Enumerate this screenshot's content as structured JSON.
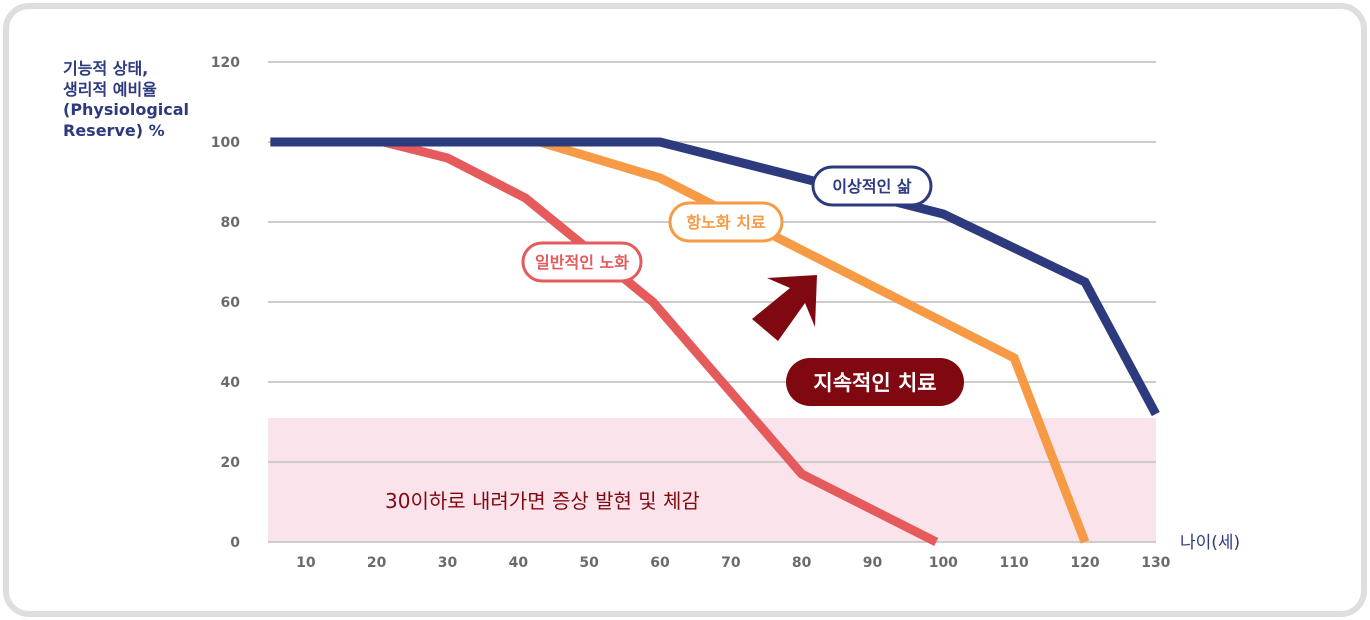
{
  "chart_data": {
    "type": "line",
    "ylabel_lines": [
      "기능적 상태,",
      "생리적 예비율",
      "(Physiological",
      "Reserve) %"
    ],
    "xlabel": "나이(세)",
    "xlim": [
      5,
      130
    ],
    "ylim": [
      0,
      120
    ],
    "x_ticks": [
      10,
      20,
      30,
      40,
      50,
      60,
      70,
      80,
      90,
      100,
      110,
      120,
      130
    ],
    "y_ticks": [
      0,
      20,
      40,
      60,
      80,
      100,
      120
    ],
    "grid": "horizontal",
    "series": [
      {
        "name": "일반적인 노화",
        "color": "#e55a5a",
        "points": [
          [
            5,
            100
          ],
          [
            21,
            100
          ],
          [
            30,
            96
          ],
          [
            41,
            86
          ],
          [
            59,
            60
          ],
          [
            80,
            17
          ],
          [
            99,
            0
          ]
        ]
      },
      {
        "name": "항노화 치료",
        "color": "#f79a45",
        "points": [
          [
            5,
            100
          ],
          [
            43,
            100
          ],
          [
            60,
            91
          ],
          [
            80,
            73
          ],
          [
            110,
            46
          ],
          [
            120,
            0
          ]
        ]
      },
      {
        "name": "이상적인 삶",
        "color": "#2e3a7e",
        "points": [
          [
            5,
            100
          ],
          [
            60,
            100
          ],
          [
            80,
            91
          ],
          [
            100,
            82
          ],
          [
            120,
            65
          ],
          [
            130,
            32
          ]
        ]
      }
    ],
    "band": {
      "from": 0,
      "to": 31,
      "color": "#fbe3ec",
      "label": "30이하로 내려가면 증상 발현 및 체감"
    },
    "callout": {
      "label": "지속적인 치료",
      "color": "#7f0811",
      "icon": "arrow-up-right-icon"
    }
  }
}
